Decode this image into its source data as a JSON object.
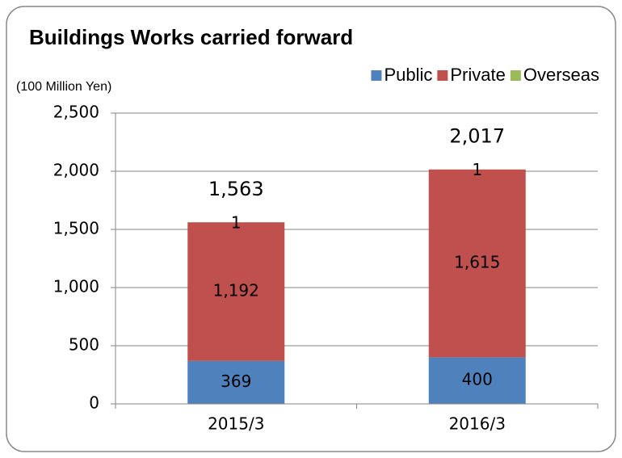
{
  "chart_data": {
    "type": "stacked_bar",
    "title": "Buildings Works carried forward",
    "y_axis_label": "(100 Million Yen)",
    "categories": [
      "2015/3",
      "2016/3"
    ],
    "series": [
      {
        "name": "Public",
        "color": "#4f81bd",
        "values": [
          369,
          400
        ]
      },
      {
        "name": "Private",
        "color": "#c0504d",
        "values": [
          1192,
          1615
        ],
        "value_labels": [
          "1,192",
          "1,615"
        ]
      },
      {
        "name": "Overseas",
        "color": "#9bbb59",
        "values": [
          1,
          1
        ]
      }
    ],
    "totals": [
      1563,
      2017
    ],
    "total_labels": [
      "1,563",
      "2,017"
    ],
    "ylim": [
      0,
      2500
    ],
    "yticks": [
      0,
      500,
      {
        "value": 1000,
        "label": "1,000"
      },
      {
        "value": 1500,
        "label": "1,500"
      },
      {
        "value": 2000,
        "label": "2,000"
      },
      {
        "value": 2500,
        "label": "2,500"
      }
    ],
    "grid": true,
    "legend": "top-right"
  }
}
